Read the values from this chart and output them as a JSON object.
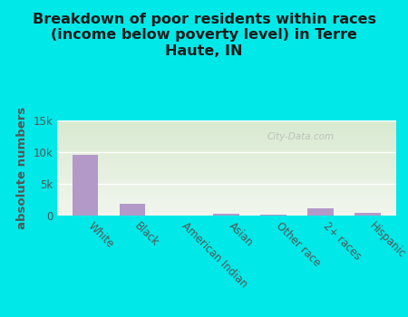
{
  "title": "Breakdown of poor residents within races\n(income below poverty level) in Terre\nHaute, IN",
  "categories": [
    "White",
    "Black",
    "American Indian",
    "Asian",
    "Other race",
    "2+ races",
    "Hispanic"
  ],
  "values": [
    9600,
    1800,
    50,
    300,
    80,
    1100,
    400
  ],
  "bar_color": "#b399c8",
  "ylabel": "absolute numbers",
  "ylim": [
    0,
    15000
  ],
  "yticks": [
    0,
    5000,
    10000,
    15000
  ],
  "ytick_labels": [
    "0",
    "5k",
    "10k",
    "15k"
  ],
  "background_outer": "#00e8e8",
  "background_inner_top": "#d8ead0",
  "background_inner_bottom": "#f2f6ee",
  "grid_color": "#ffffff",
  "watermark": "City-Data.com",
  "title_fontsize": 11.5,
  "ylabel_fontsize": 9.5,
  "tick_fontsize": 8.5,
  "label_color": "#555555",
  "title_color": "#1a1a1a"
}
